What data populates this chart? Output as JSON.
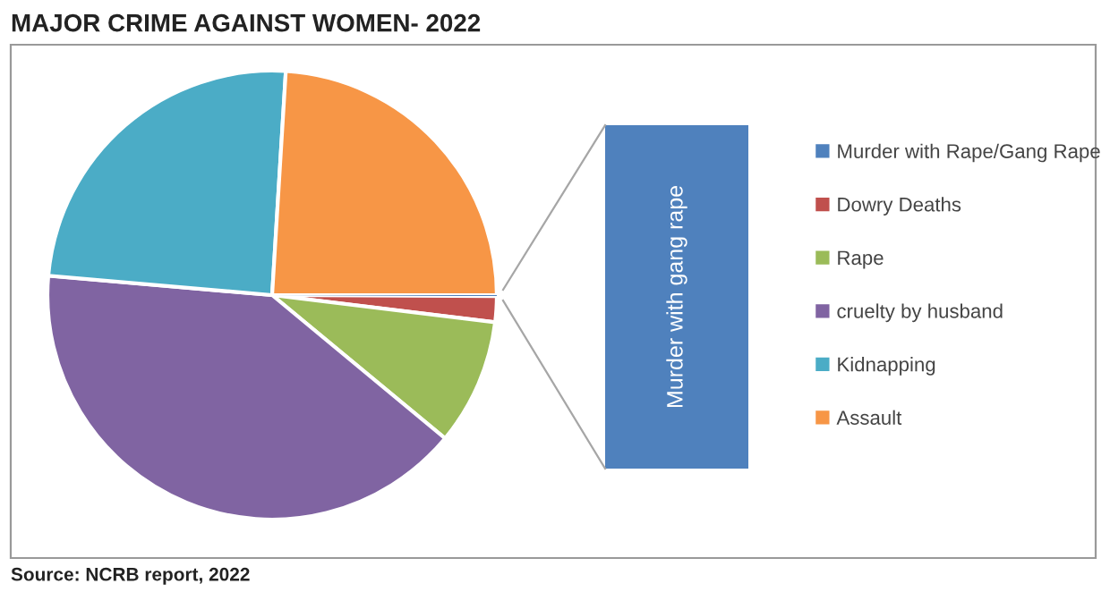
{
  "chart_data": {
    "type": "pie",
    "title": "MAJOR CRIME AGAINST WOMEN- 2022",
    "categories": [
      "Murder with Rape/Gang Rape",
      "Dowry Deaths",
      "Rape",
      "cruelty by husband",
      "Kidnapping",
      "Assault"
    ],
    "values": [
      0.07,
      1.86,
      9.09,
      40.36,
      24.59,
      24.03
    ],
    "colors": [
      "#4f81bd",
      "#c0504d",
      "#9bbb59",
      "#8064a2",
      "#4bacc6",
      "#f79646"
    ],
    "legend": "right",
    "annotations": [
      "Murder with gang rape",
      "Source: NCRB report, 2022"
    ]
  }
}
